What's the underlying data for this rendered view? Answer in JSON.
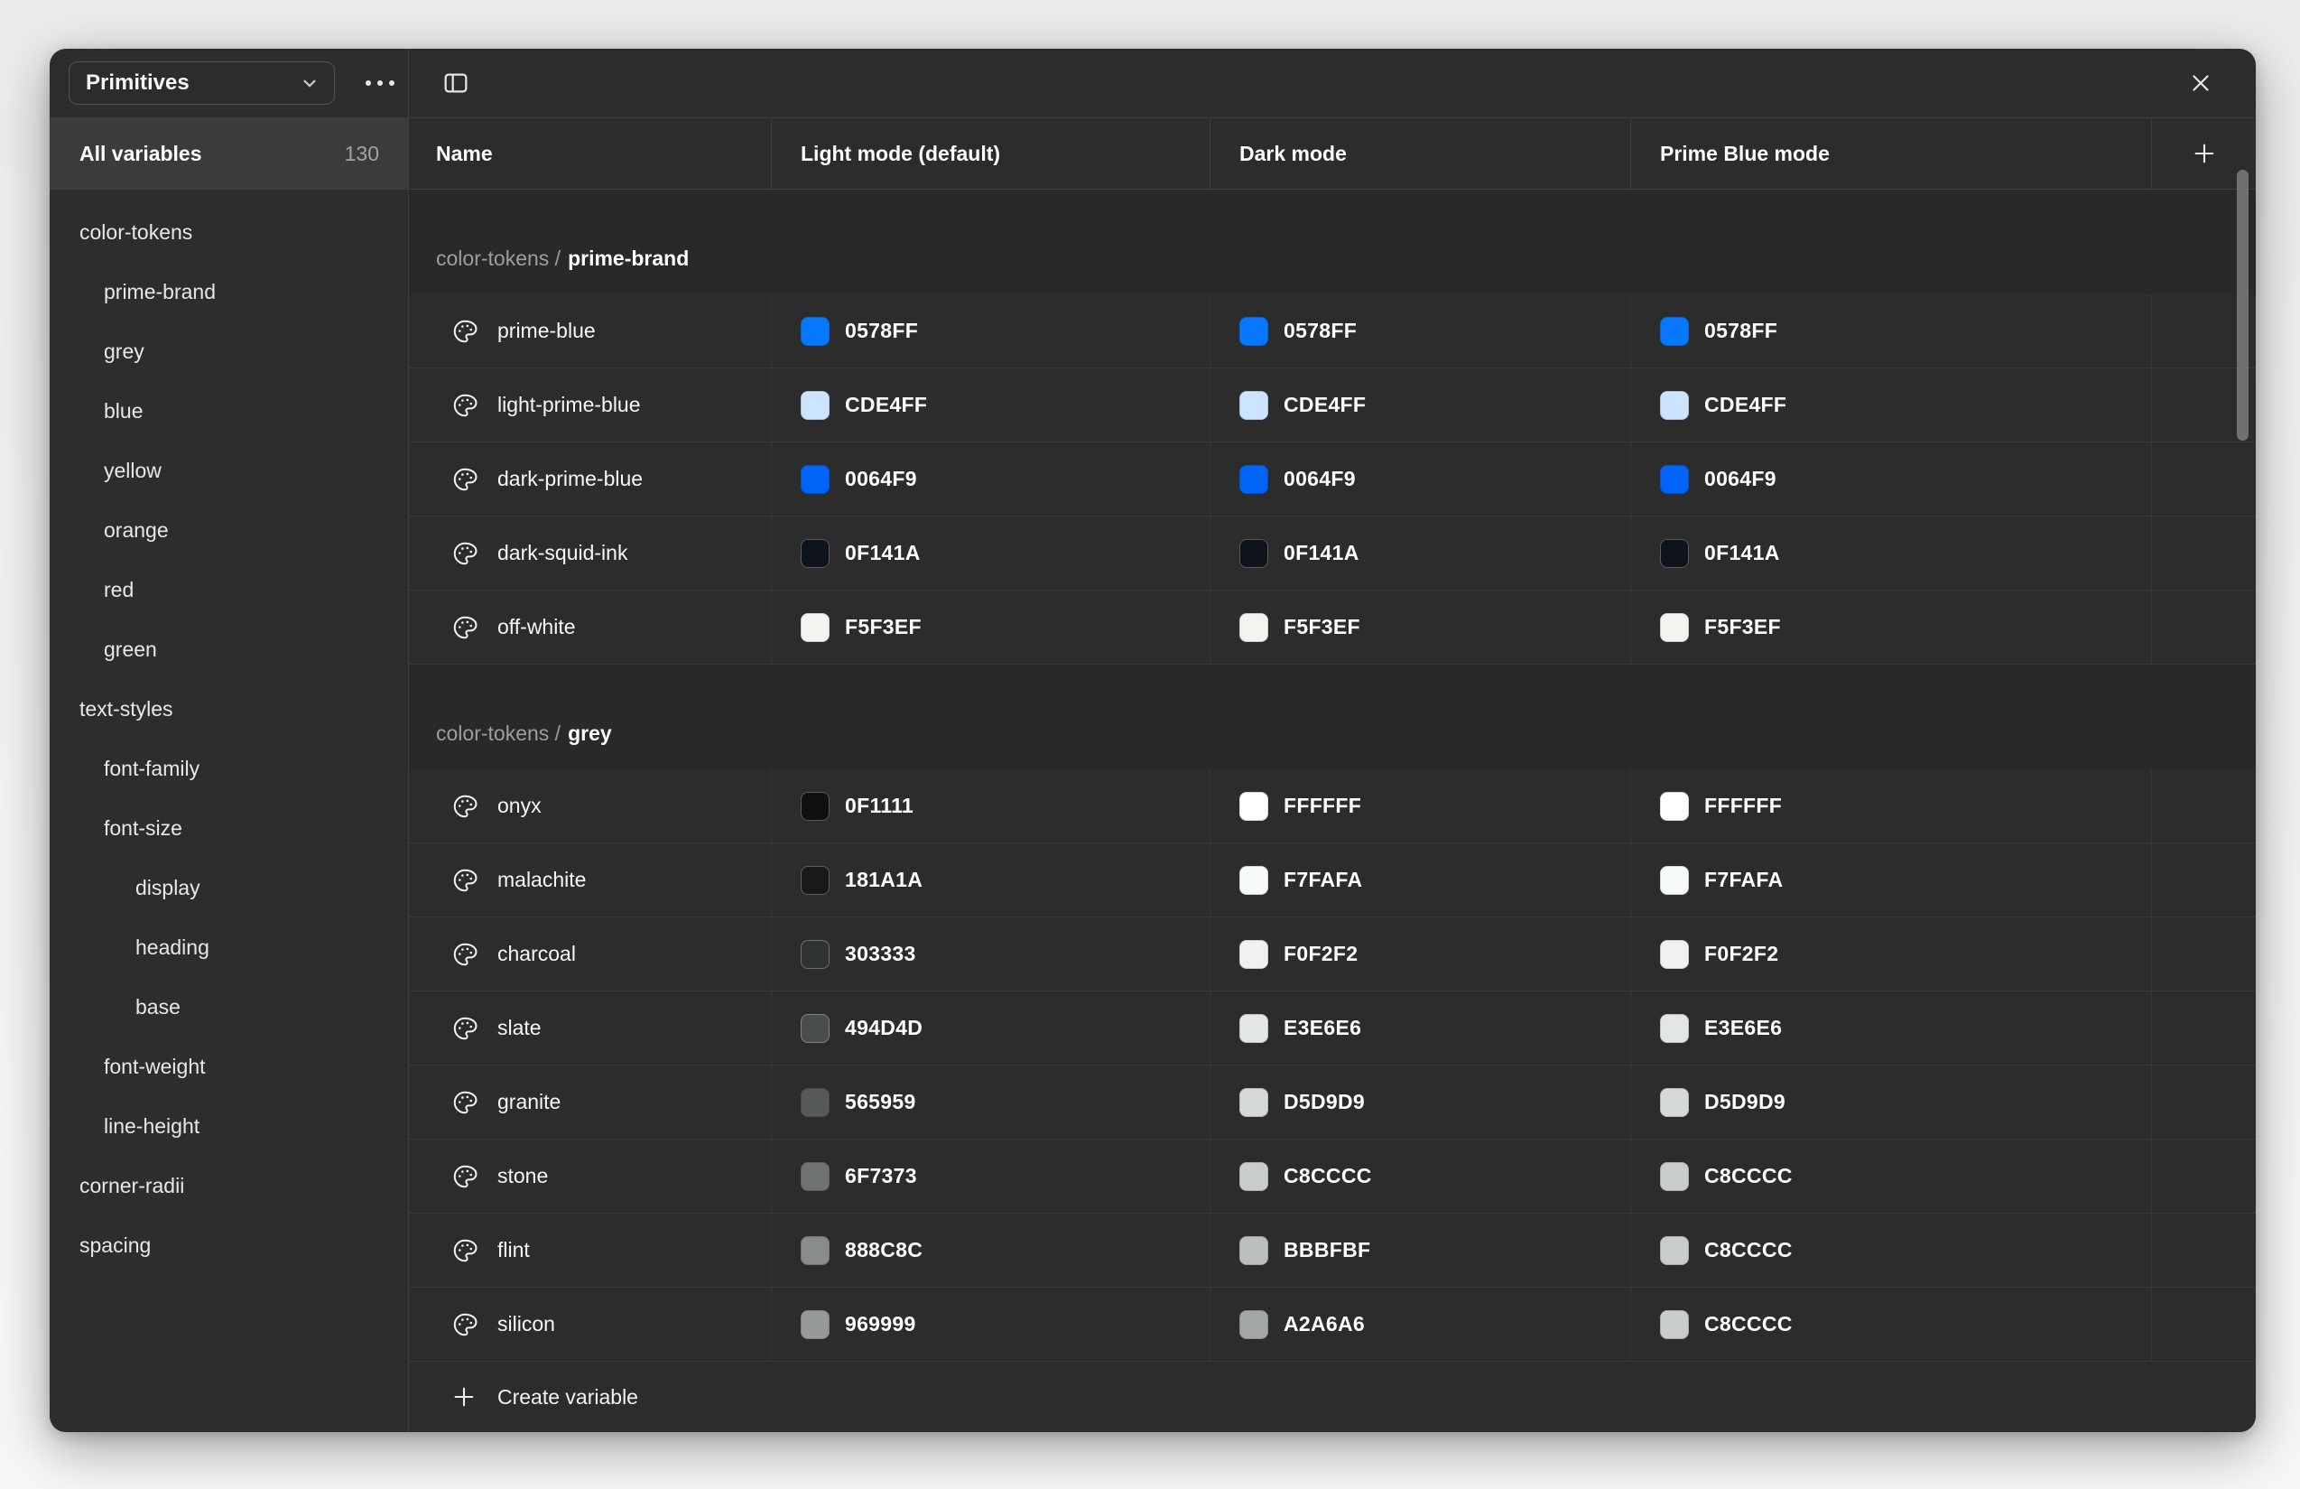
{
  "topbar": {
    "collection": "Primitives",
    "icons": {
      "dropdown": "chevron-down-icon",
      "more": "ellipsis-icon",
      "panel_toggle": "sidebar-toggle-icon",
      "close": "close-icon",
      "add_mode": "plus-icon",
      "variable_type": "palette-icon"
    }
  },
  "sidebar": {
    "all_variables_label": "All variables",
    "all_variables_count": "130",
    "items": [
      {
        "label": "color-tokens",
        "indent": 0
      },
      {
        "label": "prime-brand",
        "indent": 1
      },
      {
        "label": "grey",
        "indent": 1
      },
      {
        "label": "blue",
        "indent": 1
      },
      {
        "label": "yellow",
        "indent": 1
      },
      {
        "label": "orange",
        "indent": 1
      },
      {
        "label": "red",
        "indent": 1
      },
      {
        "label": "green",
        "indent": 1
      },
      {
        "label": "text-styles",
        "indent": 0
      },
      {
        "label": "font-family",
        "indent": 1
      },
      {
        "label": "font-size",
        "indent": 1
      },
      {
        "label": "display",
        "indent": 2
      },
      {
        "label": "heading",
        "indent": 2
      },
      {
        "label": "base",
        "indent": 2
      },
      {
        "label": "font-weight",
        "indent": 1
      },
      {
        "label": "line-height",
        "indent": 1
      },
      {
        "label": "corner-radii",
        "indent": 0
      },
      {
        "label": "spacing",
        "indent": 0
      }
    ]
  },
  "table": {
    "columns": [
      "Name",
      "Light mode (default)",
      "Dark mode",
      "Prime Blue mode"
    ],
    "groups": [
      {
        "prefix": "color-tokens /",
        "name": "prime-brand",
        "rows": [
          {
            "name": "prime-blue",
            "light": "0578FF",
            "dark": "0578FF",
            "prime_blue": "0578FF"
          },
          {
            "name": "light-prime-blue",
            "light": "CDE4FF",
            "dark": "CDE4FF",
            "prime_blue": "CDE4FF"
          },
          {
            "name": "dark-prime-blue",
            "light": "0064F9",
            "dark": "0064F9",
            "prime_blue": "0064F9"
          },
          {
            "name": "dark-squid-ink",
            "light": "0F141A",
            "dark": "0F141A",
            "prime_blue": "0F141A"
          },
          {
            "name": "off-white",
            "light": "F5F3EF",
            "dark": "F5F3EF",
            "prime_blue": "F5F3EF"
          }
        ]
      },
      {
        "prefix": "color-tokens /",
        "name": "grey",
        "rows": [
          {
            "name": "onyx",
            "light": "0F1111",
            "dark": "FFFFFF",
            "prime_blue": "FFFFFF"
          },
          {
            "name": "malachite",
            "light": "181A1A",
            "dark": "F7FAFA",
            "prime_blue": "F7FAFA"
          },
          {
            "name": "charcoal",
            "light": "303333",
            "dark": "F0F2F2",
            "prime_blue": "F0F2F2"
          },
          {
            "name": "slate",
            "light": "494D4D",
            "dark": "E3E6E6",
            "prime_blue": "E3E6E6"
          },
          {
            "name": "granite",
            "light": "565959",
            "dark": "D5D9D9",
            "prime_blue": "D5D9D9"
          },
          {
            "name": "stone",
            "light": "6F7373",
            "dark": "C8CCCC",
            "prime_blue": "C8CCCC"
          },
          {
            "name": "flint",
            "light": "888C8C",
            "dark": "BBBFBF",
            "prime_blue": "C8CCCC"
          },
          {
            "name": "silicon",
            "light": "969999",
            "dark": "A2A6A6",
            "prime_blue": "C8CCCC"
          }
        ]
      }
    ],
    "create_label": "Create variable"
  },
  "ui_colors": {
    "panel_bg": "#2c2c2c",
    "group_band_bg": "#292929",
    "selected_item_bg": "#3b3b3b",
    "divider": "#3d3d3d",
    "text_primary": "#ffffff",
    "text_secondary": "#9e9e9e",
    "page_bg": "#f2f2f4"
  }
}
